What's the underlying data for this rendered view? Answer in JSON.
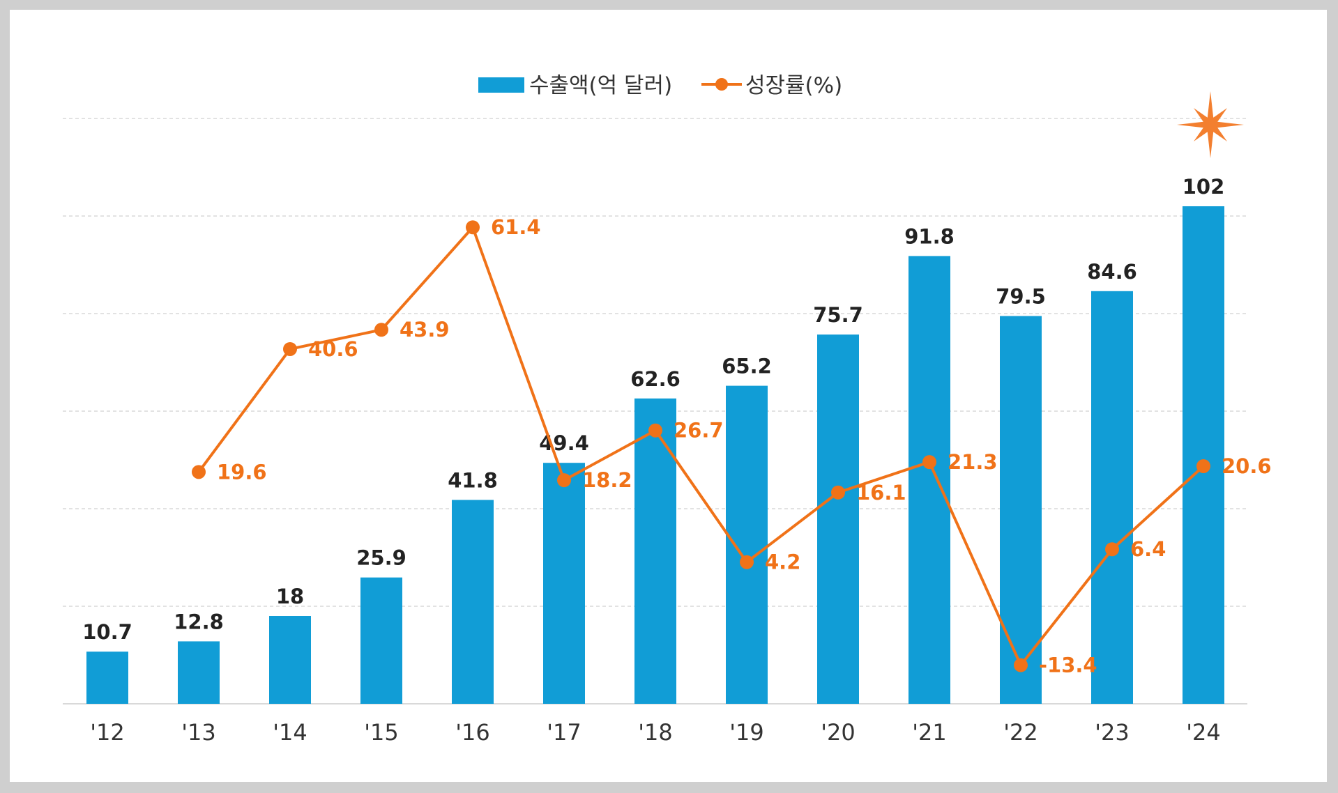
{
  "chart_data": {
    "type": "bar",
    "categories": [
      "'12",
      "'13",
      "'14",
      "'15",
      "'16",
      "'17",
      "'18",
      "'19",
      "'20",
      "'21",
      "'22",
      "'23",
      "'24"
    ],
    "series": [
      {
        "name": "수출액(억 달러)",
        "type": "bar",
        "axis": "left",
        "color": "#119dd6",
        "values": [
          10.7,
          12.8,
          18,
          25.9,
          41.8,
          49.4,
          62.6,
          65.2,
          75.7,
          91.8,
          79.5,
          84.6,
          102
        ],
        "labels": [
          "10.7",
          "12.8",
          "18",
          "25.9",
          "41.8",
          "49.4",
          "62.6",
          "65.2",
          "75.7",
          "91.8",
          "79.5",
          "84.6",
          "102"
        ]
      },
      {
        "name": "성장률(%)",
        "type": "line",
        "axis": "right",
        "color": "#f07218",
        "values": [
          null,
          19.6,
          40.6,
          43.9,
          61.4,
          18.2,
          26.7,
          4.2,
          16.1,
          21.3,
          -13.4,
          6.4,
          20.6
        ],
        "labels": [
          "",
          "19.6",
          "40.6",
          "43.9",
          "61.4",
          "18.2",
          "26.7",
          "4.2",
          "16.1",
          "21.3",
          "-13.4",
          "6.4",
          "20.6"
        ]
      }
    ],
    "ylim_left": [
      0,
      120
    ],
    "ylim_right": [
      -20,
      80
    ],
    "grid": "horizontal dashed",
    "legend": "top-center",
    "highlight": {
      "category": "'24",
      "marker": "star-burst",
      "label_color": "#f07218"
    }
  },
  "colors": {
    "bar": "#119dd6",
    "line": "#f07218",
    "bar_label": "#222222",
    "line_label": "#f07218",
    "highlight_star": "#f37f2f"
  }
}
